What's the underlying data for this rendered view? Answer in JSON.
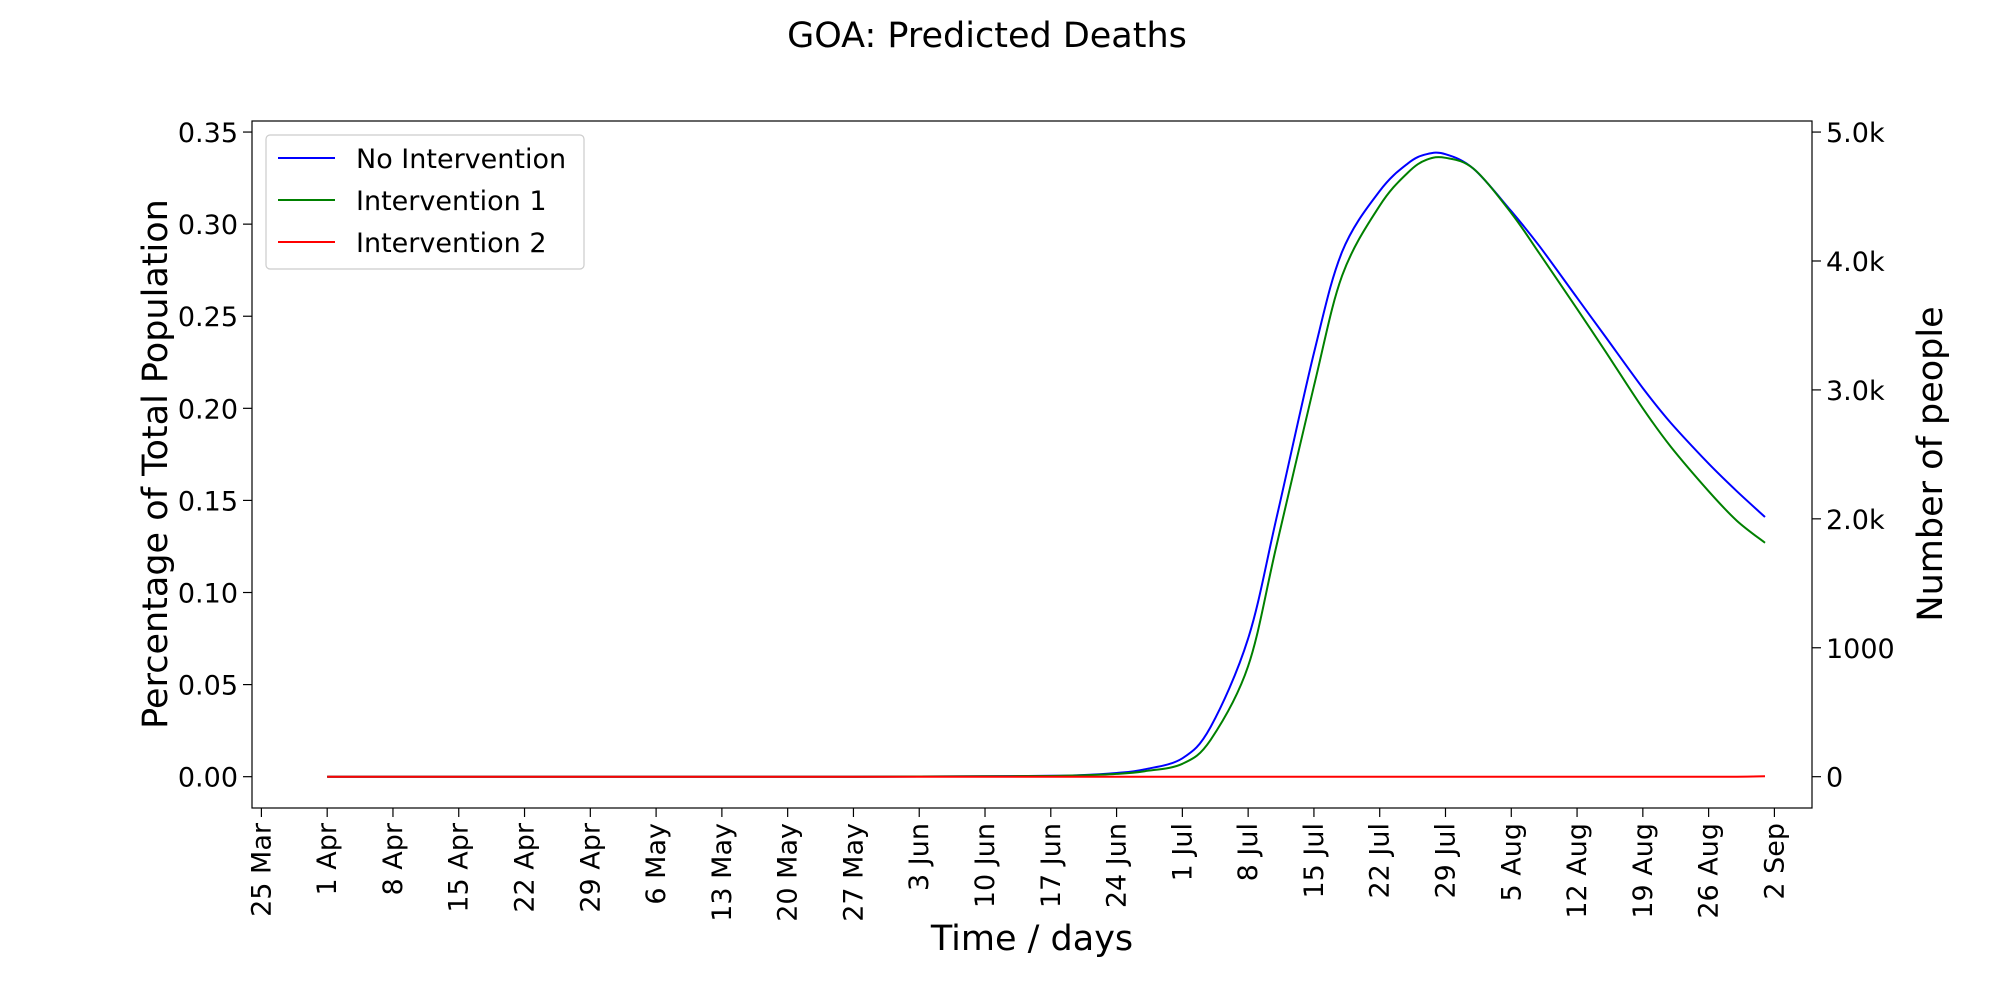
{
  "chart_data": {
    "type": "line",
    "title": "GOA: Predicted Deaths",
    "xlabel": "Time / days",
    "ylabel": "Percentage of Total Population",
    "y2label": "Number of people",
    "x_ticks": [
      "25 Mar",
      "1 Apr",
      "8 Apr",
      "15 Apr",
      "22 Apr",
      "29 Apr",
      "6 May",
      "13 May",
      "20 May",
      "27 May",
      "3 Jun",
      "10 Jun",
      "17 Jun",
      "24 Jun",
      "1 Jul",
      "8 Jul",
      "15 Jul",
      "22 Jul",
      "29 Jul",
      "5 Aug",
      "12 Aug",
      "19 Aug",
      "26 Aug",
      "2 Sep"
    ],
    "xlim": [
      "24 Mar",
      "6 Sep"
    ],
    "ylim": [
      -0.017,
      0.356
    ],
    "y_ticks": [
      0.0,
      0.05,
      0.1,
      0.15,
      0.2,
      0.25,
      0.3,
      0.35
    ],
    "y_tick_labels": [
      "0.00",
      "0.05",
      "0.10",
      "0.15",
      "0.20",
      "0.25",
      "0.30",
      "0.35"
    ],
    "y2_ticks": [
      {
        "value": 0,
        "label": "0"
      },
      {
        "value": 1000,
        "label": "1000"
      },
      {
        "value": 2000,
        "label": "2.0k"
      },
      {
        "value": 3000,
        "label": "3.0k"
      },
      {
        "value": 4000,
        "label": "4.0k"
      },
      {
        "value": 5000,
        "label": "5.0k"
      }
    ],
    "y2_per_y": 14286,
    "legend_position": "top-left",
    "x": [
      "1 Apr",
      "8 Apr",
      "15 Apr",
      "22 Apr",
      "29 Apr",
      "6 May",
      "13 May",
      "20 May",
      "27 May",
      "3 Jun",
      "10 Jun",
      "17 Jun",
      "20 Jun",
      "24 Jun",
      "27 Jun",
      "1 Jul",
      "4 Jul",
      "8 Jul",
      "11 Jul",
      "15 Jul",
      "18 Jul",
      "22 Jul",
      "25 Jul",
      "27 Jul",
      "29 Jul",
      "1 Aug",
      "5 Aug",
      "8 Aug",
      "12 Aug",
      "15 Aug",
      "19 Aug",
      "22 Aug",
      "26 Aug",
      "29 Aug",
      "1 Sep"
    ],
    "series": [
      {
        "name": "No Intervention",
        "color": "#0000ff",
        "values": [
          0,
          0,
          0,
          0,
          0,
          0,
          0,
          0,
          0,
          0.0001,
          0.0002,
          0.0005,
          0.0008,
          0.002,
          0.004,
          0.01,
          0.027,
          0.075,
          0.14,
          0.23,
          0.285,
          0.318,
          0.333,
          0.338,
          0.338,
          0.33,
          0.307,
          0.288,
          0.26,
          0.239,
          0.211,
          0.192,
          0.17,
          0.155,
          0.141
        ]
      },
      {
        "name": "Intervention 1",
        "color": "#008000",
        "values": [
          0,
          0,
          0,
          0,
          0,
          0,
          0,
          0,
          0,
          0.0001,
          0.0002,
          0.0004,
          0.0007,
          0.0015,
          0.003,
          0.007,
          0.02,
          0.06,
          0.125,
          0.212,
          0.272,
          0.31,
          0.328,
          0.335,
          0.336,
          0.33,
          0.306,
          0.284,
          0.254,
          0.231,
          0.2,
          0.179,
          0.155,
          0.139,
          0.127
        ]
      },
      {
        "name": "Intervention 2",
        "color": "#ff0000",
        "values": [
          0,
          0,
          0,
          0,
          0,
          0,
          0,
          0,
          0,
          0,
          0,
          0,
          0,
          0,
          0,
          0,
          0,
          0,
          0,
          0,
          0,
          0,
          0,
          0,
          0,
          0,
          0,
          0,
          0,
          0,
          0,
          0,
          0,
          0,
          0.0002
        ]
      }
    ]
  }
}
